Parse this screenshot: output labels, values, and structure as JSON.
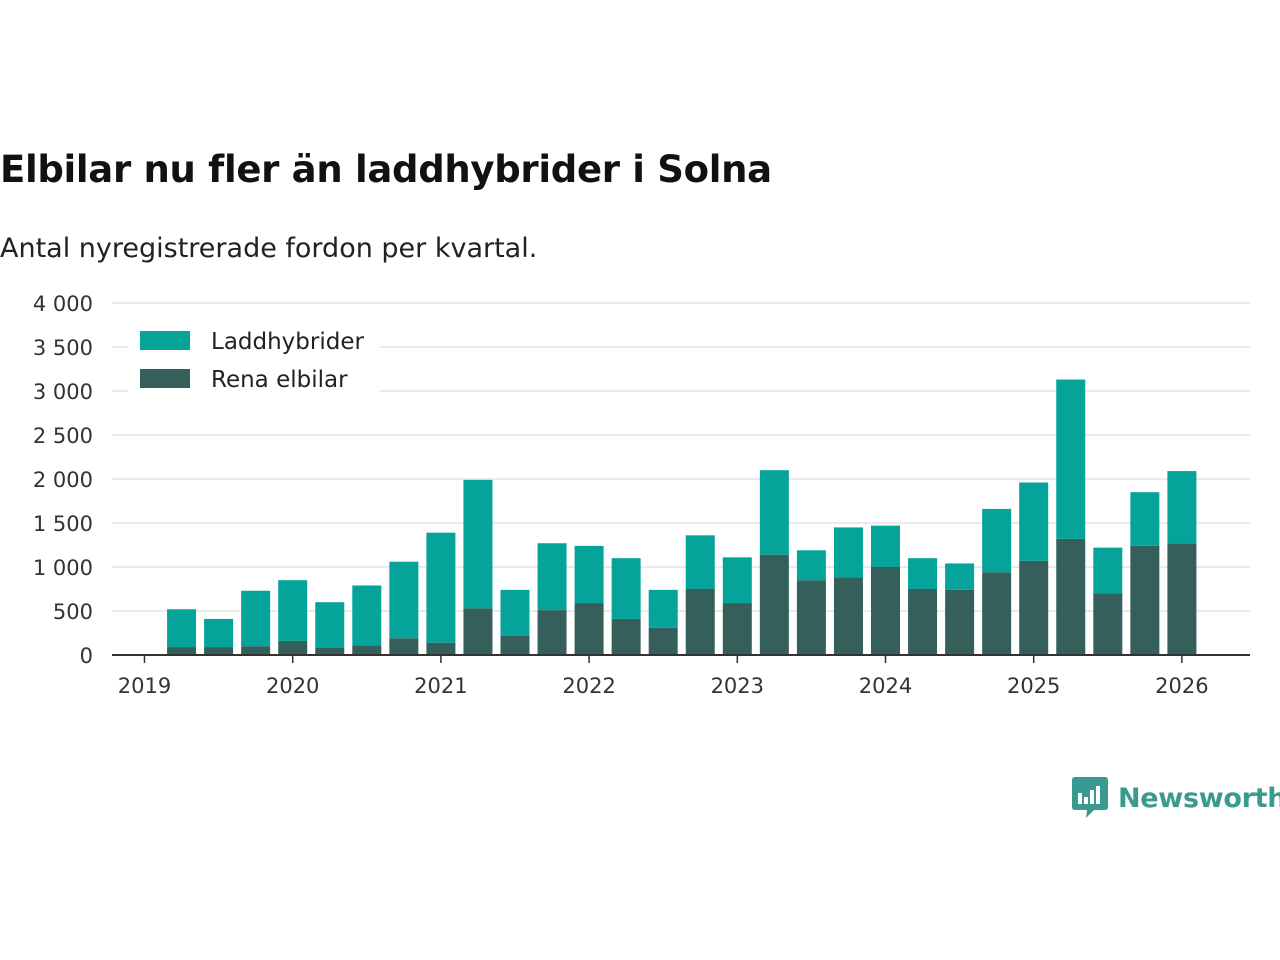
{
  "header": {
    "title": "Elbilar nu fler än laddhybrider i Solna",
    "subtitle": "Antal nyregistrerade fordon per kvartal."
  },
  "brand": {
    "name": "Newsworthy",
    "icon": "bar-chart-speech-icon"
  },
  "colors": {
    "laddhybrider": "#05a399",
    "rena_elbilar": "#355f5b",
    "grid": "#dddddd",
    "axis": "#333333",
    "brand": "#3b9a8f"
  },
  "chart_data": {
    "type": "bar",
    "stacked": true,
    "title": "Elbilar nu fler än laddhybrider i Solna",
    "subtitle": "Antal nyregistrerade fordon per kvartal.",
    "xlabel": "",
    "ylabel": "",
    "ylim": [
      0,
      4000
    ],
    "yticks": [
      0,
      500,
      1000,
      1500,
      2000,
      2500,
      3000,
      3500,
      4000
    ],
    "ytick_labels": [
      "0",
      "500",
      "1 000",
      "1 500",
      "2 000",
      "2 500",
      "3 000",
      "3 500",
      "4 000"
    ],
    "xticks": [
      "2019",
      "2020",
      "2021",
      "2022",
      "2023",
      "2024",
      "2025",
      "2026"
    ],
    "grid": true,
    "legend_position": "top-left",
    "categories": [
      "2019 Q2",
      "2019 Q3",
      "2019 Q4",
      "2020 Q1",
      "2020 Q2",
      "2020 Q3",
      "2020 Q4",
      "2021 Q1",
      "2021 Q2",
      "2021 Q3",
      "2021 Q4",
      "2022 Q1",
      "2022 Q2",
      "2022 Q3",
      "2022 Q4",
      "2023 Q1",
      "2023 Q2",
      "2023 Q3",
      "2023 Q4",
      "2024 Q1",
      "2024 Q2",
      "2024 Q3",
      "2024 Q4",
      "2025 Q1",
      "2025 Q2",
      "2025 Q3",
      "2025 Q4",
      "2026 Q1"
    ],
    "series": [
      {
        "name": "Rena elbilar",
        "color": "#355f5b",
        "values": [
          90,
          90,
          100,
          160,
          80,
          110,
          190,
          140,
          530,
          220,
          510,
          590,
          410,
          310,
          750,
          590,
          1140,
          850,
          880,
          1000,
          750,
          740,
          940,
          1070,
          1320,
          700,
          1240,
          1270
        ]
      },
      {
        "name": "Laddhybrider",
        "color": "#05a399",
        "values": [
          430,
          320,
          630,
          690,
          520,
          680,
          870,
          1250,
          1460,
          520,
          760,
          650,
          690,
          430,
          610,
          520,
          960,
          340,
          570,
          470,
          350,
          300,
          720,
          890,
          1810,
          520,
          610,
          820
        ]
      }
    ]
  }
}
